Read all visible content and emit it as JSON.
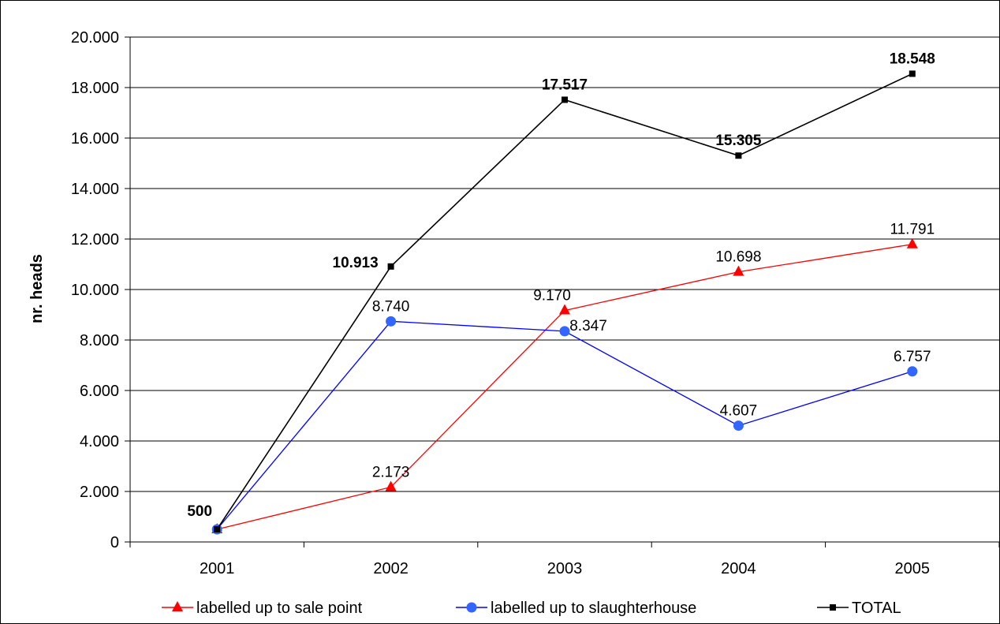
{
  "chart_data": {
    "type": "line",
    "title": "",
    "xlabel": "",
    "ylabel": "nr. heads",
    "categories": [
      "2001",
      "2002",
      "2003",
      "2004",
      "2005"
    ],
    "ylim": [
      0,
      20000
    ],
    "yticks": [
      0,
      2000,
      4000,
      6000,
      8000,
      10000,
      12000,
      14000,
      16000,
      18000,
      20000
    ],
    "ytick_labels": [
      "0",
      "2.000",
      "4.000",
      "6.000",
      "8.000",
      "10.000",
      "12.000",
      "14.000",
      "16.000",
      "18.000",
      "20.000"
    ],
    "grid": "horizontal",
    "legend_position": "bottom",
    "series": [
      {
        "name": "labelled up to sale point",
        "values": [
          500,
          2173,
          9170,
          10698,
          11791
        ],
        "labels": [
          "",
          "2.173",
          "9.170",
          "10.698",
          "11.791"
        ],
        "color": "#ff0000",
        "marker": "triangle",
        "bold_labels": false
      },
      {
        "name": "labelled up to slaughterhouse",
        "values": [
          500,
          8740,
          8347,
          4607,
          6757
        ],
        "labels": [
          "",
          "8.740",
          "8.347",
          "4.607",
          "6.757"
        ],
        "color": "#0000ff",
        "marker_color": "#3366ff",
        "marker": "circle",
        "bold_labels": false
      },
      {
        "name": "TOTAL",
        "values": [
          500,
          10913,
          17517,
          15305,
          18548
        ],
        "labels": [
          "500",
          "10.913",
          "17.517",
          "15.305",
          "18.548"
        ],
        "color": "#000000",
        "marker": "square",
        "bold_labels": true
      }
    ]
  }
}
